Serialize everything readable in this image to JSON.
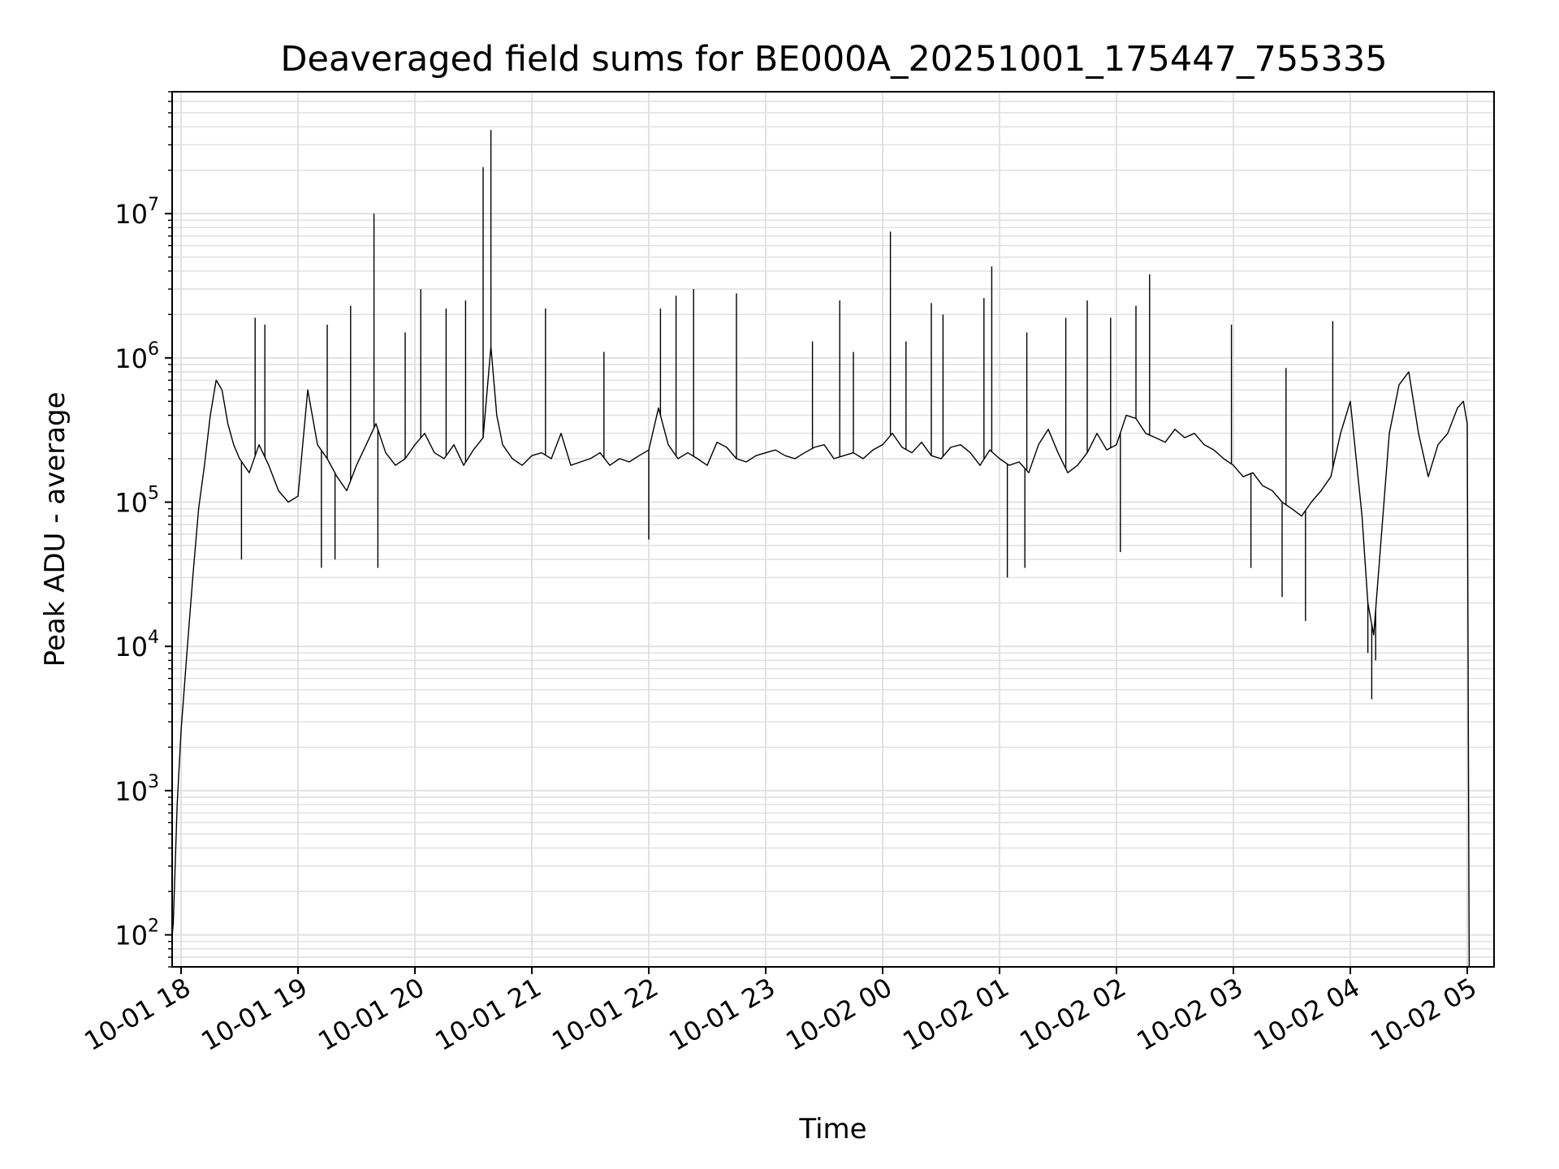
{
  "chart_data": {
    "type": "line",
    "title": "Deaveraged field sums for BE000A_20251001_175447_755335",
    "xlabel": "Time",
    "ylabel": "Peak ADU - average",
    "yscale": "log",
    "ylim": [
      60,
      70000000
    ],
    "xlim": [
      "2025-10-01 17:54",
      "2025-10-02 05:13"
    ],
    "grid": true,
    "color": "#000000",
    "x_ticks": [
      {
        "value": "2025-10-01 18:00",
        "label": "10-01 18"
      },
      {
        "value": "2025-10-01 19:00",
        "label": "10-01 19"
      },
      {
        "value": "2025-10-01 20:00",
        "label": "10-01 20"
      },
      {
        "value": "2025-10-01 21:00",
        "label": "10-01 21"
      },
      {
        "value": "2025-10-01 22:00",
        "label": "10-01 22"
      },
      {
        "value": "2025-10-01 23:00",
        "label": "10-01 23"
      },
      {
        "value": "2025-10-02 00:00",
        "label": "10-02 00"
      },
      {
        "value": "2025-10-02 01:00",
        "label": "10-02 01"
      },
      {
        "value": "2025-10-02 02:00",
        "label": "10-02 02"
      },
      {
        "value": "2025-10-02 03:00",
        "label": "10-02 03"
      },
      {
        "value": "2025-10-02 04:00",
        "label": "10-02 04"
      },
      {
        "value": "2025-10-02 05:00",
        "label": "10-02 05"
      }
    ],
    "y_ticks": [
      {
        "value": 100,
        "label": "10",
        "exp": "2"
      },
      {
        "value": 1000,
        "label": "10",
        "exp": "3"
      },
      {
        "value": 10000,
        "label": "10",
        "exp": "4"
      },
      {
        "value": 100000,
        "label": "10",
        "exp": "5"
      },
      {
        "value": 1000000,
        "label": "10",
        "exp": "6"
      },
      {
        "value": 10000000,
        "label": "10",
        "exp": "7"
      }
    ],
    "series": [
      {
        "x": [
          "2025-10-01 17:54",
          "2025-10-01 17:56",
          "2025-10-01 17:58",
          "2025-10-01 18:00",
          "2025-10-01 18:03",
          "2025-10-01 18:06",
          "2025-10-01 18:09",
          "2025-10-01 18:12",
          "2025-10-01 18:15",
          "2025-10-01 18:18",
          "2025-10-01 18:21",
          "2025-10-01 18:24",
          "2025-10-01 18:27",
          "2025-10-01 18:30",
          "2025-10-01 18:35",
          "2025-10-01 18:40",
          "2025-10-01 18:45",
          "2025-10-01 18:50",
          "2025-10-01 18:55",
          "2025-10-01 19:00",
          "2025-10-01 19:05",
          "2025-10-01 19:10",
          "2025-10-01 19:15",
          "2025-10-01 19:20",
          "2025-10-01 19:25",
          "2025-10-01 19:30",
          "2025-10-01 19:35",
          "2025-10-01 19:40",
          "2025-10-01 19:45",
          "2025-10-01 19:50",
          "2025-10-01 19:55",
          "2025-10-01 20:00",
          "2025-10-01 20:05",
          "2025-10-01 20:10",
          "2025-10-01 20:15",
          "2025-10-01 20:20",
          "2025-10-01 20:25",
          "2025-10-01 20:30",
          "2025-10-01 20:35",
          "2025-10-01 20:39",
          "2025-10-01 20:42",
          "2025-10-01 20:45",
          "2025-10-01 20:50",
          "2025-10-01 20:55",
          "2025-10-01 21:00",
          "2025-10-01 21:05",
          "2025-10-01 21:10",
          "2025-10-01 21:15",
          "2025-10-01 21:20",
          "2025-10-01 21:25",
          "2025-10-01 21:30",
          "2025-10-01 21:35",
          "2025-10-01 21:40",
          "2025-10-01 21:45",
          "2025-10-01 21:50",
          "2025-10-01 21:55",
          "2025-10-01 22:00",
          "2025-10-01 22:05",
          "2025-10-01 22:10",
          "2025-10-01 22:15",
          "2025-10-01 22:20",
          "2025-10-01 22:25",
          "2025-10-01 22:30",
          "2025-10-01 22:35",
          "2025-10-01 22:40",
          "2025-10-01 22:45",
          "2025-10-01 22:50",
          "2025-10-01 22:55",
          "2025-10-01 23:00",
          "2025-10-01 23:05",
          "2025-10-01 23:10",
          "2025-10-01 23:15",
          "2025-10-01 23:20",
          "2025-10-01 23:25",
          "2025-10-01 23:30",
          "2025-10-01 23:35",
          "2025-10-01 23:40",
          "2025-10-01 23:45",
          "2025-10-01 23:50",
          "2025-10-01 23:55",
          "2025-10-02 00:00",
          "2025-10-02 00:05",
          "2025-10-02 00:10",
          "2025-10-02 00:15",
          "2025-10-02 00:20",
          "2025-10-02 00:25",
          "2025-10-02 00:30",
          "2025-10-02 00:35",
          "2025-10-02 00:40",
          "2025-10-02 00:45",
          "2025-10-02 00:50",
          "2025-10-02 00:55",
          "2025-10-02 01:00",
          "2025-10-02 01:05",
          "2025-10-02 01:10",
          "2025-10-02 01:15",
          "2025-10-02 01:20",
          "2025-10-02 01:25",
          "2025-10-02 01:30",
          "2025-10-02 01:35",
          "2025-10-02 01:40",
          "2025-10-02 01:45",
          "2025-10-02 01:50",
          "2025-10-02 01:55",
          "2025-10-02 02:00",
          "2025-10-02 02:05",
          "2025-10-02 02:10",
          "2025-10-02 02:15",
          "2025-10-02 02:20",
          "2025-10-02 02:25",
          "2025-10-02 02:30",
          "2025-10-02 02:35",
          "2025-10-02 02:40",
          "2025-10-02 02:45",
          "2025-10-02 02:50",
          "2025-10-02 02:55",
          "2025-10-02 03:00",
          "2025-10-02 03:05",
          "2025-10-02 03:10",
          "2025-10-02 03:15",
          "2025-10-02 03:20",
          "2025-10-02 03:25",
          "2025-10-02 03:30",
          "2025-10-02 03:35",
          "2025-10-02 03:40",
          "2025-10-02 03:45",
          "2025-10-02 03:50",
          "2025-10-02 03:55",
          "2025-10-02 04:00",
          "2025-10-02 04:03",
          "2025-10-02 04:06",
          "2025-10-02 04:09",
          "2025-10-02 04:12",
          "2025-10-02 04:15",
          "2025-10-02 04:20",
          "2025-10-02 04:25",
          "2025-10-02 04:30",
          "2025-10-02 04:35",
          "2025-10-02 04:40",
          "2025-10-02 04:45",
          "2025-10-02 04:50",
          "2025-10-02 04:55",
          "2025-10-02 04:58",
          "2025-10-02 05:00",
          "2025-10-02 05:01"
        ],
        "y": [
          60,
          120,
          800,
          2600,
          9000,
          30000,
          90000,
          180000,
          400000,
          700000,
          600000,
          350000,
          250000,
          200000,
          160000,
          250000,
          180000,
          120000,
          100000,
          110000,
          600000,
          250000,
          200000,
          150000,
          120000,
          180000,
          250000,
          350000,
          220000,
          180000,
          200000,
          250000,
          300000,
          220000,
          200000,
          250000,
          180000,
          230000,
          280000,
          1200000,
          400000,
          250000,
          200000,
          180000,
          210000,
          220000,
          200000,
          300000,
          180000,
          190000,
          200000,
          220000,
          180000,
          200000,
          190000,
          210000,
          230000,
          450000,
          250000,
          200000,
          220000,
          200000,
          180000,
          260000,
          240000,
          200000,
          190000,
          210000,
          220000,
          230000,
          210000,
          200000,
          220000,
          240000,
          250000,
          200000,
          210000,
          220000,
          200000,
          230000,
          250000,
          300000,
          240000,
          220000,
          260000,
          210000,
          200000,
          240000,
          250000,
          220000,
          180000,
          230000,
          200000,
          180000,
          190000,
          160000,
          250000,
          320000,
          220000,
          160000,
          180000,
          220000,
          300000,
          230000,
          250000,
          400000,
          380000,
          300000,
          280000,
          260000,
          320000,
          280000,
          300000,
          250000,
          230000,
          200000,
          180000,
          150000,
          160000,
          130000,
          120000,
          100000,
          90000,
          80000,
          100000,
          120000,
          150000,
          300000,
          500000,
          200000,
          80000,
          20000,
          12000,
          40000,
          300000,
          650000,
          800000,
          300000,
          150000,
          250000,
          300000,
          450000,
          500000,
          350000,
          60
        ]
      }
    ],
    "spikes": [
      {
        "x": "2025-10-01 18:38",
        "y": 1900000
      },
      {
        "x": "2025-10-01 18:43",
        "y": 1700000
      },
      {
        "x": "2025-10-01 19:15",
        "y": 1700000
      },
      {
        "x": "2025-10-01 19:27",
        "y": 2300000
      },
      {
        "x": "2025-10-01 19:39",
        "y": 10000000
      },
      {
        "x": "2025-10-01 19:55",
        "y": 1500000
      },
      {
        "x": "2025-10-01 20:03",
        "y": 3000000
      },
      {
        "x": "2025-10-01 20:16",
        "y": 2200000
      },
      {
        "x": "2025-10-01 20:26",
        "y": 2500000
      },
      {
        "x": "2025-10-01 20:35",
        "y": 21000000
      },
      {
        "x": "2025-10-01 20:39",
        "y": 38000000
      },
      {
        "x": "2025-10-01 21:07",
        "y": 2200000
      },
      {
        "x": "2025-10-01 21:37",
        "y": 1100000
      },
      {
        "x": "2025-10-01 22:06",
        "y": 2200000
      },
      {
        "x": "2025-10-01 22:14",
        "y": 2700000
      },
      {
        "x": "2025-10-01 22:23",
        "y": 3000000
      },
      {
        "x": "2025-10-01 22:45",
        "y": 2800000
      },
      {
        "x": "2025-10-01 23:24",
        "y": 1300000
      },
      {
        "x": "2025-10-01 23:38",
        "y": 2500000
      },
      {
        "x": "2025-10-01 23:45",
        "y": 1100000
      },
      {
        "x": "2025-10-02 00:04",
        "y": 7500000
      },
      {
        "x": "2025-10-02 00:12",
        "y": 1300000
      },
      {
        "x": "2025-10-02 00:25",
        "y": 2400000
      },
      {
        "x": "2025-10-02 00:31",
        "y": 2000000
      },
      {
        "x": "2025-10-02 00:52",
        "y": 2600000
      },
      {
        "x": "2025-10-02 00:56",
        "y": 4300000
      },
      {
        "x": "2025-10-02 01:14",
        "y": 1500000
      },
      {
        "x": "2025-10-02 01:34",
        "y": 1900000
      },
      {
        "x": "2025-10-02 01:45",
        "y": 2500000
      },
      {
        "x": "2025-10-02 01:57",
        "y": 1900000
      },
      {
        "x": "2025-10-02 02:10",
        "y": 2300000
      },
      {
        "x": "2025-10-02 02:17",
        "y": 3800000
      },
      {
        "x": "2025-10-02 02:59",
        "y": 1700000
      },
      {
        "x": "2025-10-02 03:27",
        "y": 850000
      },
      {
        "x": "2025-10-02 03:51",
        "y": 1800000
      }
    ],
    "dips": [
      {
        "x": "2025-10-01 18:31",
        "y": 40000
      },
      {
        "x": "2025-10-01 19:12",
        "y": 35000
      },
      {
        "x": "2025-10-01 19:19",
        "y": 40000
      },
      {
        "x": "2025-10-01 19:41",
        "y": 35000
      },
      {
        "x": "2025-10-01 22:00",
        "y": 55000
      },
      {
        "x": "2025-10-02 01:04",
        "y": 30000
      },
      {
        "x": "2025-10-02 01:13",
        "y": 35000
      },
      {
        "x": "2025-10-02 02:02",
        "y": 45000
      },
      {
        "x": "2025-10-02 03:09",
        "y": 35000
      },
      {
        "x": "2025-10-02 03:25",
        "y": 22000
      },
      {
        "x": "2025-10-02 03:37",
        "y": 15000
      },
      {
        "x": "2025-10-02 04:09",
        "y": 9000
      },
      {
        "x": "2025-10-02 04:11",
        "y": 4300
      },
      {
        "x": "2025-10-02 04:13",
        "y": 8000
      }
    ]
  }
}
